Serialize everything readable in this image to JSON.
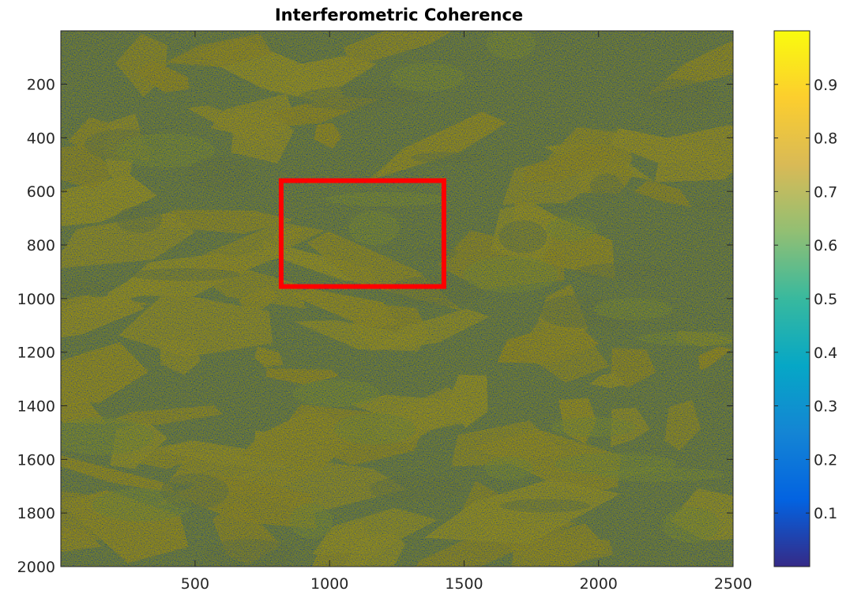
{
  "chart_data": {
    "type": "heatmap",
    "title": "Interferometric Coherence",
    "xlabel": "",
    "ylabel": "",
    "xlim": [
      1,
      2500
    ],
    "ylim": [
      1,
      2000
    ],
    "y_direction": "reversed",
    "x_ticks": [
      500,
      1000,
      1500,
      2000,
      2500
    ],
    "y_ticks": [
      200,
      400,
      600,
      800,
      1000,
      1200,
      1400,
      1600,
      1800,
      2000
    ],
    "colormap": "parula",
    "colorbar": {
      "limits": [
        0,
        1
      ],
      "ticks": [
        0.1,
        0.2,
        0.3,
        0.4,
        0.5,
        0.6,
        0.7,
        0.8,
        0.9
      ],
      "position": "right"
    },
    "highlight_box": {
      "color": "#ff0000",
      "x_range": [
        820,
        1425
      ],
      "y_range": [
        560,
        955
      ]
    },
    "grid": false
  }
}
